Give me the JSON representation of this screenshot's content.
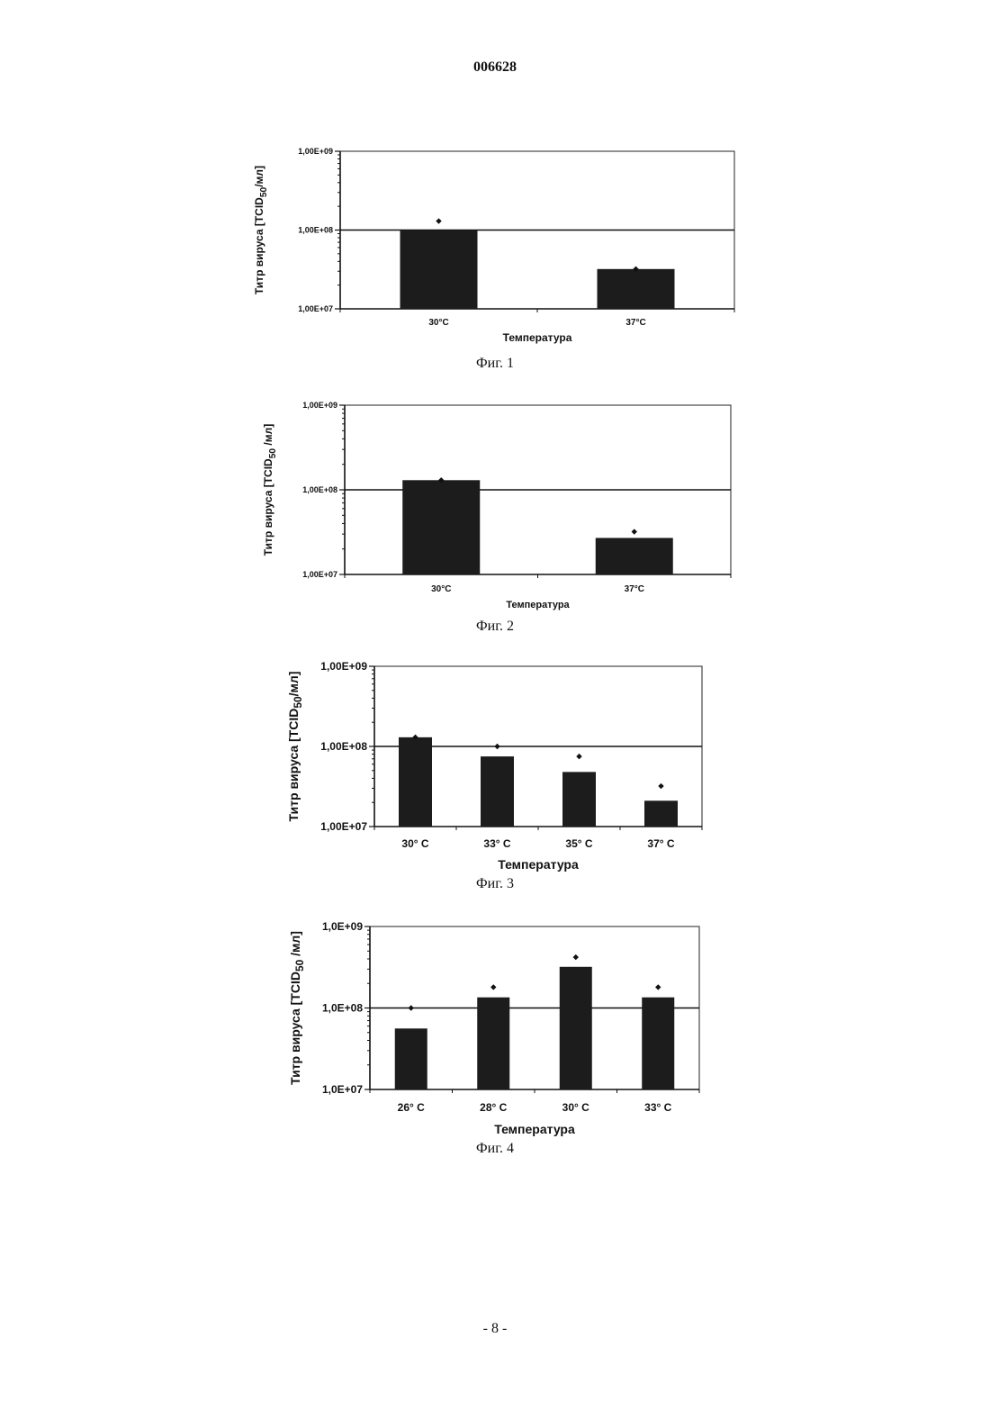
{
  "page": {
    "doc_number": "006628",
    "page_number": "- 8 -"
  },
  "figures": [
    {
      "caption": "Фиг. 1"
    },
    {
      "caption": "Фиг. 2"
    },
    {
      "caption": "Фиг. 3"
    },
    {
      "caption": "Фиг. 4"
    }
  ],
  "chart_data": [
    {
      "type": "bar",
      "title": "",
      "xlabel": "Температура",
      "ylabel": "Титр вируса [TCID50/мл]",
      "yscale": "log",
      "ylim": [
        10000000,
        1000000000
      ],
      "yticks": [
        "1,00E+07",
        "1,00E+08",
        "1,00E+09"
      ],
      "gridline": "1,00E+08",
      "categories": [
        "30°C",
        "37°C"
      ],
      "series": [
        {
          "type": "bar",
          "values": [
            100000000,
            32000000
          ]
        },
        {
          "type": "scatter",
          "marker": "diamond",
          "values": [
            130000000,
            32000000
          ]
        }
      ]
    },
    {
      "type": "bar",
      "title": "",
      "xlabel": "Температура",
      "ylabel": "Титр вируса [TCID50 /мл]",
      "yscale": "log",
      "ylim": [
        10000000,
        1000000000
      ],
      "yticks": [
        "1,00E+07",
        "1,00E+08",
        "1,00E+09"
      ],
      "gridline": "1,00E+08",
      "categories": [
        "30°C",
        "37°C"
      ],
      "series": [
        {
          "type": "bar",
          "values": [
            130000000,
            27000000
          ]
        },
        {
          "type": "scatter",
          "marker": "diamond",
          "values": [
            130000000,
            32000000
          ]
        }
      ]
    },
    {
      "type": "bar",
      "title": "",
      "xlabel": "Температура",
      "ylabel": "Титр вируса [TCID50/мл]",
      "yscale": "log",
      "ylim": [
        10000000,
        1000000000
      ],
      "yticks": [
        "1,00E+07",
        "1,00E+08",
        "1,00E+09"
      ],
      "gridline": "1,00E+08",
      "categories": [
        "30° C",
        "33° C",
        "35° C",
        "37° C"
      ],
      "series": [
        {
          "type": "bar",
          "values": [
            130000000,
            75000000,
            48000000,
            21000000
          ]
        },
        {
          "type": "scatter",
          "marker": "diamond",
          "values": [
            130000000,
            100000000,
            75000000,
            32000000
          ]
        }
      ]
    },
    {
      "type": "bar",
      "title": "",
      "xlabel": "Температура",
      "ylabel": "Титр вируса [TCID50 /мл]",
      "yscale": "log",
      "ylim": [
        10000000,
        1000000000
      ],
      "yticks": [
        "1,0E+07",
        "1,0E+08",
        "1,0E+09"
      ],
      "gridline": "1,0E+08",
      "categories": [
        "26° C",
        "28° C",
        "30° C",
        "33° C"
      ],
      "series": [
        {
          "type": "bar",
          "values": [
            56000000,
            135000000,
            320000000,
            135000000
          ]
        },
        {
          "type": "scatter",
          "marker": "diamond",
          "values": [
            100000000,
            180000000,
            420000000,
            180000000
          ]
        }
      ]
    }
  ]
}
